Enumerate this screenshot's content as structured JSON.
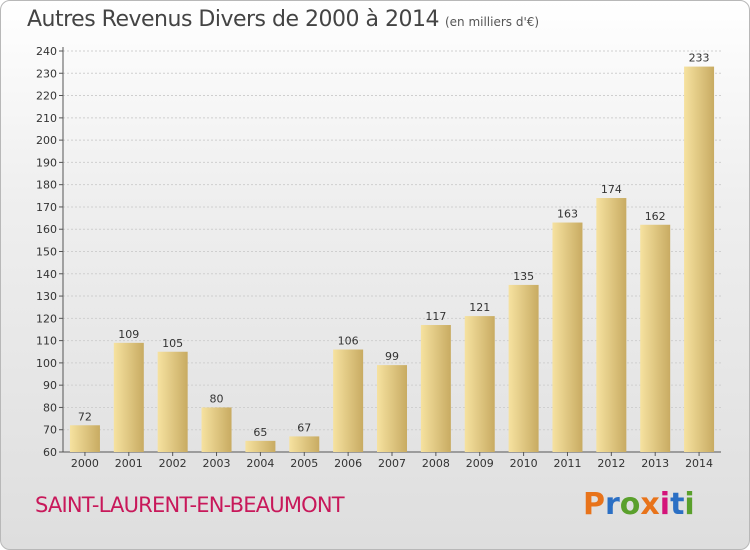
{
  "title": "Autres Revenus Divers de 2000 à 2014",
  "title_unit": "(en milliers d'€)",
  "commune": "SAINT-LAURENT-EN-BEAUMONT",
  "logo": {
    "text": "Proxiti",
    "letter_colors": [
      "#e8731a",
      "#2b6fc4",
      "#5aa02c",
      "#e8731a",
      "#d4147a",
      "#2b6fc4",
      "#5aa02c"
    ]
  },
  "colors": {
    "bar_light": "#f6e2a0",
    "bar_dark": "#c8ab62",
    "commune": "#c8185a",
    "grid": "#cfcfcf"
  },
  "chart_data": {
    "type": "bar",
    "categories": [
      "2000",
      "2001",
      "2002",
      "2003",
      "2004",
      "2005",
      "2006",
      "2007",
      "2008",
      "2009",
      "2010",
      "2011",
      "2012",
      "2013",
      "2014"
    ],
    "values": [
      72,
      109,
      105,
      80,
      65,
      67,
      106,
      99,
      117,
      121,
      135,
      163,
      174,
      162,
      233
    ],
    "ylim": [
      60,
      240
    ],
    "yticks": [
      60,
      70,
      80,
      90,
      100,
      110,
      120,
      130,
      140,
      150,
      160,
      170,
      180,
      190,
      200,
      210,
      220,
      230,
      240
    ],
    "grid": true,
    "xlabel": "",
    "ylabel": ""
  }
}
